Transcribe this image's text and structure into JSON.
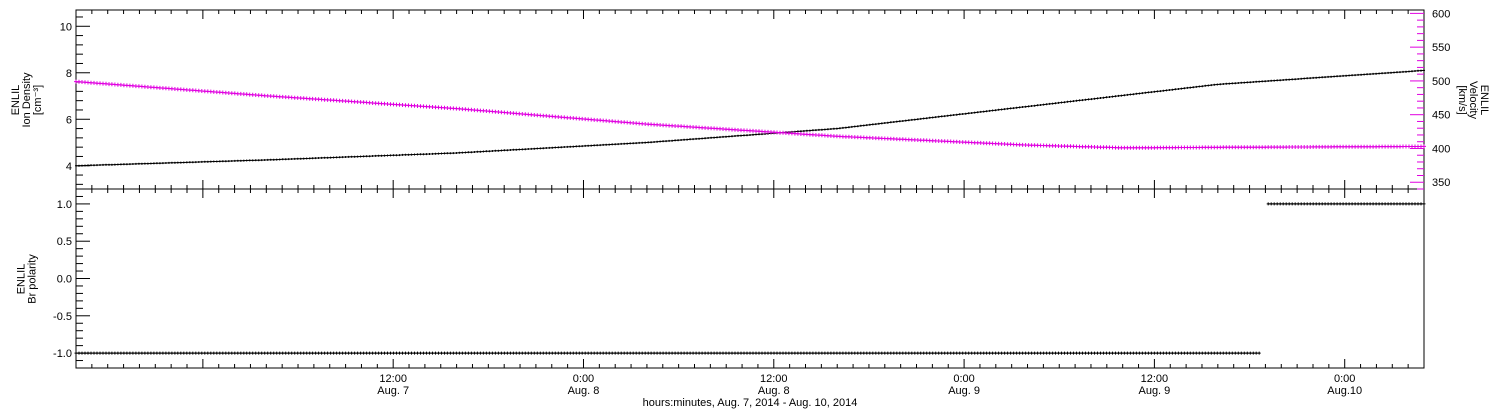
{
  "chart_data": [
    {
      "type": "line",
      "panel": "top",
      "x_range": [
        "2014-08-06 16:00",
        "2014-08-10 05:00"
      ],
      "y_left": {
        "label_lines": [
          "ENLIL",
          "Ion Density",
          "[cm⁻³]"
        ],
        "ylim": [
          3.0,
          10.7
        ],
        "ticks": [
          4,
          6,
          8,
          10
        ],
        "tick_labels": [
          "4",
          "6",
          "8",
          "10"
        ]
      },
      "y_right": {
        "label_lines": [
          "ENLIL",
          "Velocity",
          "[km/s]"
        ],
        "ylim": [
          340,
          605
        ],
        "ticks": [
          350,
          400,
          450,
          500,
          550,
          600
        ],
        "tick_labels": [
          "350",
          "400",
          "450",
          "500",
          "550",
          "600"
        ],
        "color": "#e000e0"
      },
      "series": [
        {
          "axis": "left",
          "color": "#000000",
          "x": [
            "2014-08-06 16:00",
            "2014-08-07 04:00",
            "2014-08-07 16:00",
            "2014-08-08 04:00",
            "2014-08-08 16:00",
            "2014-08-09 04:00",
            "2014-08-09 16:00",
            "2014-08-10 05:00"
          ],
          "values": [
            4.0,
            4.25,
            4.55,
            5.0,
            5.6,
            6.55,
            7.5,
            8.1
          ]
        },
        {
          "axis": "right",
          "color": "#e000e0",
          "x": [
            "2014-08-06 16:00",
            "2014-08-07 04:00",
            "2014-08-07 16:00",
            "2014-08-08 04:00",
            "2014-08-08 16:00",
            "2014-08-09 04:00",
            "2014-08-09 10:00",
            "2014-08-10 05:00"
          ],
          "values": [
            499,
            478,
            459,
            436,
            418,
            405,
            401,
            403
          ]
        }
      ]
    },
    {
      "type": "line",
      "panel": "bottom",
      "x_range": [
        "2014-08-06 16:00",
        "2014-08-10 05:00"
      ],
      "y_left": {
        "label_lines": [
          "ENLIL",
          "Br polarity"
        ],
        "ylim": [
          -1.2,
          1.2
        ],
        "ticks": [
          -1.0,
          -0.5,
          0.0,
          0.5,
          1.0
        ],
        "tick_labels": [
          "-1.0",
          "-0.5",
          "0.0",
          "0.5",
          "1.0"
        ]
      },
      "series": [
        {
          "color": "#000000",
          "x": [
            "2014-08-06 16:00",
            "2014-08-09 18:45",
            "2014-08-09 19:00",
            "2014-08-10 05:00"
          ],
          "values": [
            -1.0,
            -1.0,
            1.0,
            1.0
          ]
        }
      ]
    }
  ],
  "x_axis": {
    "title": "hours:minutes, Aug.  7, 2014 - Aug. 10, 2014",
    "ticks": [
      {
        "t": "2014-08-07 12:00",
        "time": "12:00",
        "date": "Aug. 7"
      },
      {
        "t": "2014-08-08 00:00",
        "time": "0:00",
        "date": "Aug. 8"
      },
      {
        "t": "2014-08-08 12:00",
        "time": "12:00",
        "date": "Aug. 8"
      },
      {
        "t": "2014-08-09 00:00",
        "time": "0:00",
        "date": "Aug. 9"
      },
      {
        "t": "2014-08-09 12:00",
        "time": "12:00",
        "date": "Aug. 9"
      },
      {
        "t": "2014-08-10 00:00",
        "time": "0:00",
        "date": "Aug.10"
      }
    ]
  }
}
